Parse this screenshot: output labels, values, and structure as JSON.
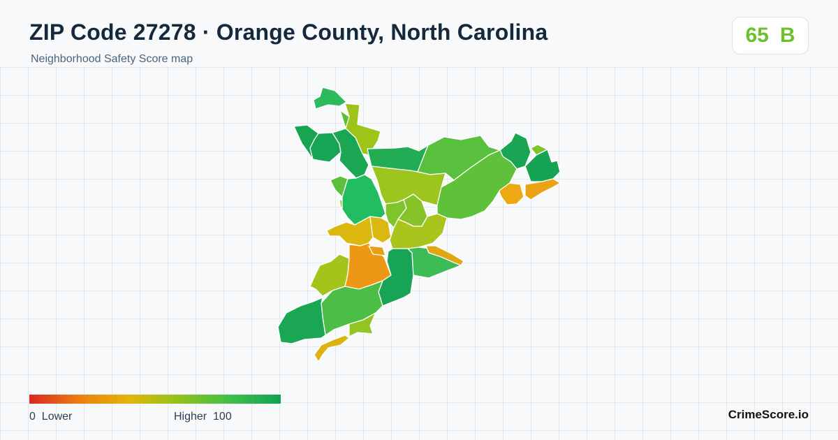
{
  "header": {
    "title": "ZIP Code 27278 · Orange County, North Carolina",
    "subtitle": "Neighborhood Safety Score map"
  },
  "score": {
    "value": "65",
    "grade": "B",
    "color": "#6cc02e"
  },
  "legend": {
    "min_label": "0",
    "low_label": "Lower",
    "high_label": "Higher",
    "max_label": "100",
    "gradient": [
      "#d62a22",
      "#ee7e12",
      "#e3b50c",
      "#8fc21e",
      "#3fbf49",
      "#12a255"
    ]
  },
  "brand": "CrimeScore.io",
  "map": {
    "region": "ZIP 27278",
    "neighborhoods": [
      {
        "id": "n01",
        "score": 88,
        "color": "#2cba5c"
      },
      {
        "id": "n02",
        "score": 73,
        "color": "#9ec41a"
      },
      {
        "id": "n03",
        "score": 80,
        "color": "#5bbd3a"
      },
      {
        "id": "n04",
        "score": 92,
        "color": "#18a552"
      },
      {
        "id": "n05",
        "score": 92,
        "color": "#17a454"
      },
      {
        "id": "n06",
        "score": 92,
        "color": "#1aa653"
      },
      {
        "id": "n07",
        "score": 80,
        "color": "#5cc13a"
      },
      {
        "id": "n08",
        "score": 91,
        "color": "#22ad55"
      },
      {
        "id": "n09",
        "score": 75,
        "color": "#98c620"
      },
      {
        "id": "n10",
        "score": 80,
        "color": "#58c03c"
      },
      {
        "id": "n11",
        "score": 92,
        "color": "#19a553"
      },
      {
        "id": "n12",
        "score": 78,
        "color": "#7dc42b"
      },
      {
        "id": "n13",
        "score": 92,
        "color": "#16a454"
      },
      {
        "id": "n14",
        "score": 44,
        "color": "#eda914"
      },
      {
        "id": "n15",
        "score": 44,
        "color": "#eba213"
      },
      {
        "id": "n16",
        "score": 93,
        "color": "#22bd60"
      },
      {
        "id": "n17",
        "score": 74,
        "color": "#9cc61d"
      },
      {
        "id": "n18",
        "score": 80,
        "color": "#5fc03a"
      },
      {
        "id": "n19",
        "score": 78,
        "color": "#7fc42a"
      },
      {
        "id": "n20",
        "score": 77,
        "color": "#86c328"
      },
      {
        "id": "n21",
        "score": 55,
        "color": "#dcb70f"
      },
      {
        "id": "n22",
        "score": 55,
        "color": "#d9b812"
      },
      {
        "id": "n23",
        "score": 70,
        "color": "#a9c41c"
      },
      {
        "id": "n24",
        "score": 40,
        "color": "#ec9815"
      },
      {
        "id": "n25",
        "score": 44,
        "color": "#e8a112"
      },
      {
        "id": "n26",
        "score": 92,
        "color": "#17a454"
      },
      {
        "id": "n27",
        "score": 85,
        "color": "#3cbb56"
      },
      {
        "id": "n28",
        "score": 50,
        "color": "#e0a713"
      },
      {
        "id": "n29",
        "score": 73,
        "color": "#a3c41b"
      },
      {
        "id": "n30",
        "score": 82,
        "color": "#4cbd45"
      },
      {
        "id": "n31",
        "score": 92,
        "color": "#1aa653"
      },
      {
        "id": "n32",
        "score": 75,
        "color": "#92c522"
      },
      {
        "id": "n33",
        "score": 55,
        "color": "#dcb311"
      }
    ]
  }
}
